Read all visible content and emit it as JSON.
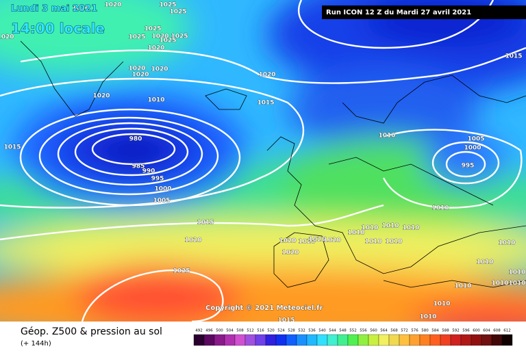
{
  "header": {
    "date": "Lundi 3 mai 2021",
    "time": "14:00 locale",
    "run": "Run ICON 12 Z du Mardi 27 avril 2021"
  },
  "copyright": "Copyright © 2021 Meteociel.fr",
  "footer": {
    "title": "Géop. Z500 & pression au sol",
    "lead": "(+ 144h)"
  },
  "isobar_labels": [
    "1020",
    "1020",
    "1025",
    "1025",
    "1025",
    "1020",
    "1025",
    "1025",
    "1025",
    "1020",
    "1020",
    "1020",
    "1020",
    "1020",
    "1020",
    "1020",
    "1010",
    "1015",
    "1015",
    "980",
    "985",
    "990",
    "995",
    "1000",
    "1005",
    "1015",
    "1020",
    "1025",
    "1015",
    "1010",
    "1005",
    "1000",
    "995",
    "1010",
    "1020",
    "1020",
    "1020",
    "1020",
    "1020",
    "1010",
    "1010",
    "1010",
    "1010",
    "1010",
    "1010",
    "1010",
    "1010",
    "1010",
    "1010",
    "1010",
    "1010",
    "1010",
    "1010",
    "1015"
  ],
  "scale": {
    "labels": [
      "492",
      "496",
      "500",
      "504",
      "508",
      "512",
      "516",
      "520",
      "524",
      "528",
      "532",
      "536",
      "540",
      "544",
      "548",
      "552",
      "556",
      "560",
      "564",
      "568",
      "572",
      "576",
      "580",
      "584",
      "588",
      "592",
      "596",
      "600",
      "604",
      "608",
      "612"
    ],
    "colors": [
      "#2a0030",
      "#5a0860",
      "#8a1a8a",
      "#b030b0",
      "#d050d0",
      "#a050e0",
      "#7040e8",
      "#3020e0",
      "#1030f0",
      "#1060ff",
      "#1a90ff",
      "#20b8ff",
      "#30e0ff",
      "#40f0d0",
      "#40f090",
      "#50f050",
      "#90f040",
      "#c8f040",
      "#f0f060",
      "#f0d850",
      "#ffc040",
      "#ffa030",
      "#ff8020",
      "#ff6020",
      "#f04020",
      "#d02020",
      "#b01818",
      "#901010",
      "#701010",
      "#400808",
      "#100000"
    ]
  }
}
